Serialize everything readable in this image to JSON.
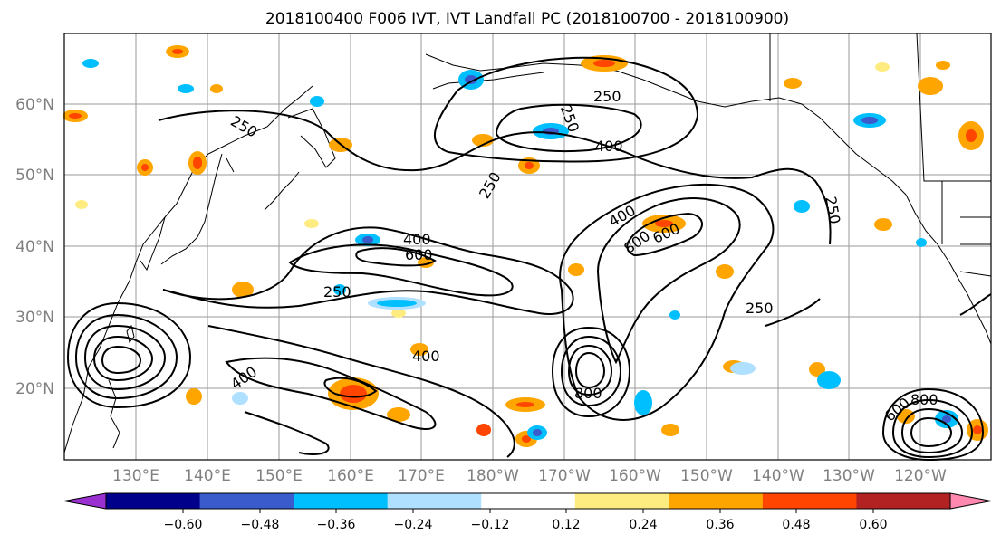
{
  "figure": {
    "title": "2018100400 F006 IVT, IVT Landfall PC (2018100700 - 2018100900)"
  },
  "map": {
    "lon_labels": [
      "130°E",
      "140°E",
      "150°E",
      "160°E",
      "170°E",
      "180°W",
      "170°W",
      "160°W",
      "150°W",
      "140°W",
      "130°W",
      "120°W"
    ],
    "lat_labels": [
      "60°N",
      "50°N",
      "40°N",
      "30°N",
      "20°N"
    ],
    "contour_labels": [
      "250",
      "250",
      "250",
      "250",
      "250",
      "250",
      "250",
      "400",
      "400",
      "400",
      "400",
      "400",
      "600",
      "600",
      "600",
      "800",
      "800",
      "800"
    ]
  },
  "colorbar": {
    "colors": [
      "#9b30d0",
      "#00008b",
      "#3a5bcc",
      "#00bfff",
      "#b0e0ff",
      "#ffffff",
      "#ffec80",
      "#ffa500",
      "#ff4500",
      "#b22222",
      "#ff88b0"
    ],
    "tick_labels": [
      "−0.60",
      "−0.48",
      "−0.36",
      "−0.24",
      "−0.12",
      "0.12",
      "0.24",
      "0.36",
      "0.48",
      "0.60"
    ]
  }
}
